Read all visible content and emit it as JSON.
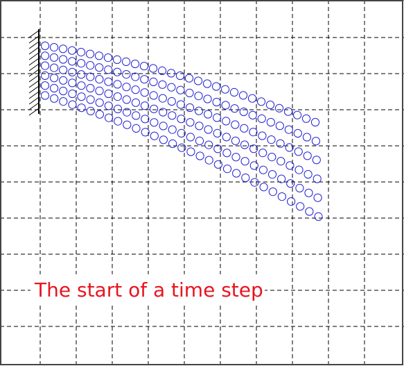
{
  "caption": {
    "text": "The start of a time step",
    "color": "#e8141e"
  },
  "colors": {
    "particles": "#2323d2",
    "grid": "#000000",
    "support": "#000000",
    "frame": "#444444",
    "background": "#ffffff"
  },
  "figure": {
    "elements": [
      "fixed-support-hatching",
      "background-grid",
      "particle-cloud"
    ],
    "particle_shape": "circle-outline",
    "grid_style": "dashed"
  }
}
